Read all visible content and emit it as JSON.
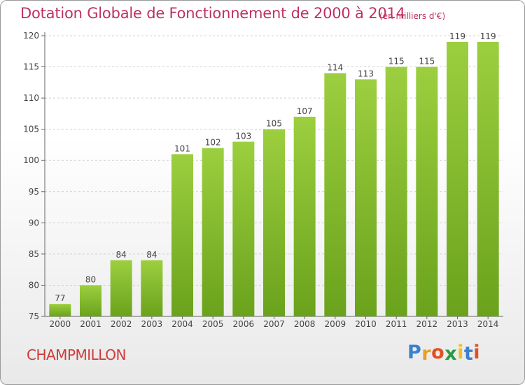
{
  "title": "Dotation Globale de Fonctionnement de 2000 à 2014",
  "unit_note": "(en milliers d'€)",
  "place_name": "CHAMPMILLON",
  "logo": {
    "letters": [
      "P",
      "r",
      "o",
      "x",
      "i",
      "t",
      "i"
    ],
    "colors": [
      "#3a7fd0",
      "#e8a020",
      "#e05020",
      "#2a9a40",
      "#f0c020",
      "#3a7fd0",
      "#e05020"
    ]
  },
  "colors": {
    "bar_top": "#9ccf3f",
    "bar_bottom": "#6aa21c",
    "grid": "#d0d0d0",
    "text": "#444444"
  },
  "chart_data": {
    "type": "bar",
    "title": "Dotation Globale de Fonctionnement de 2000 à 2014",
    "xlabel": "",
    "ylabel": "",
    "ylim": [
      75,
      120
    ],
    "yticks": [
      75,
      80,
      85,
      90,
      95,
      100,
      105,
      110,
      115,
      120
    ],
    "categories": [
      "2000",
      "2001",
      "2002",
      "2003",
      "2004",
      "2005",
      "2006",
      "2007",
      "2008",
      "2009",
      "2010",
      "2011",
      "2012",
      "2013",
      "2014"
    ],
    "values": [
      77,
      80,
      84,
      84,
      101,
      102,
      103,
      105,
      107,
      114,
      113,
      115,
      115,
      119,
      119
    ],
    "grid": true
  }
}
